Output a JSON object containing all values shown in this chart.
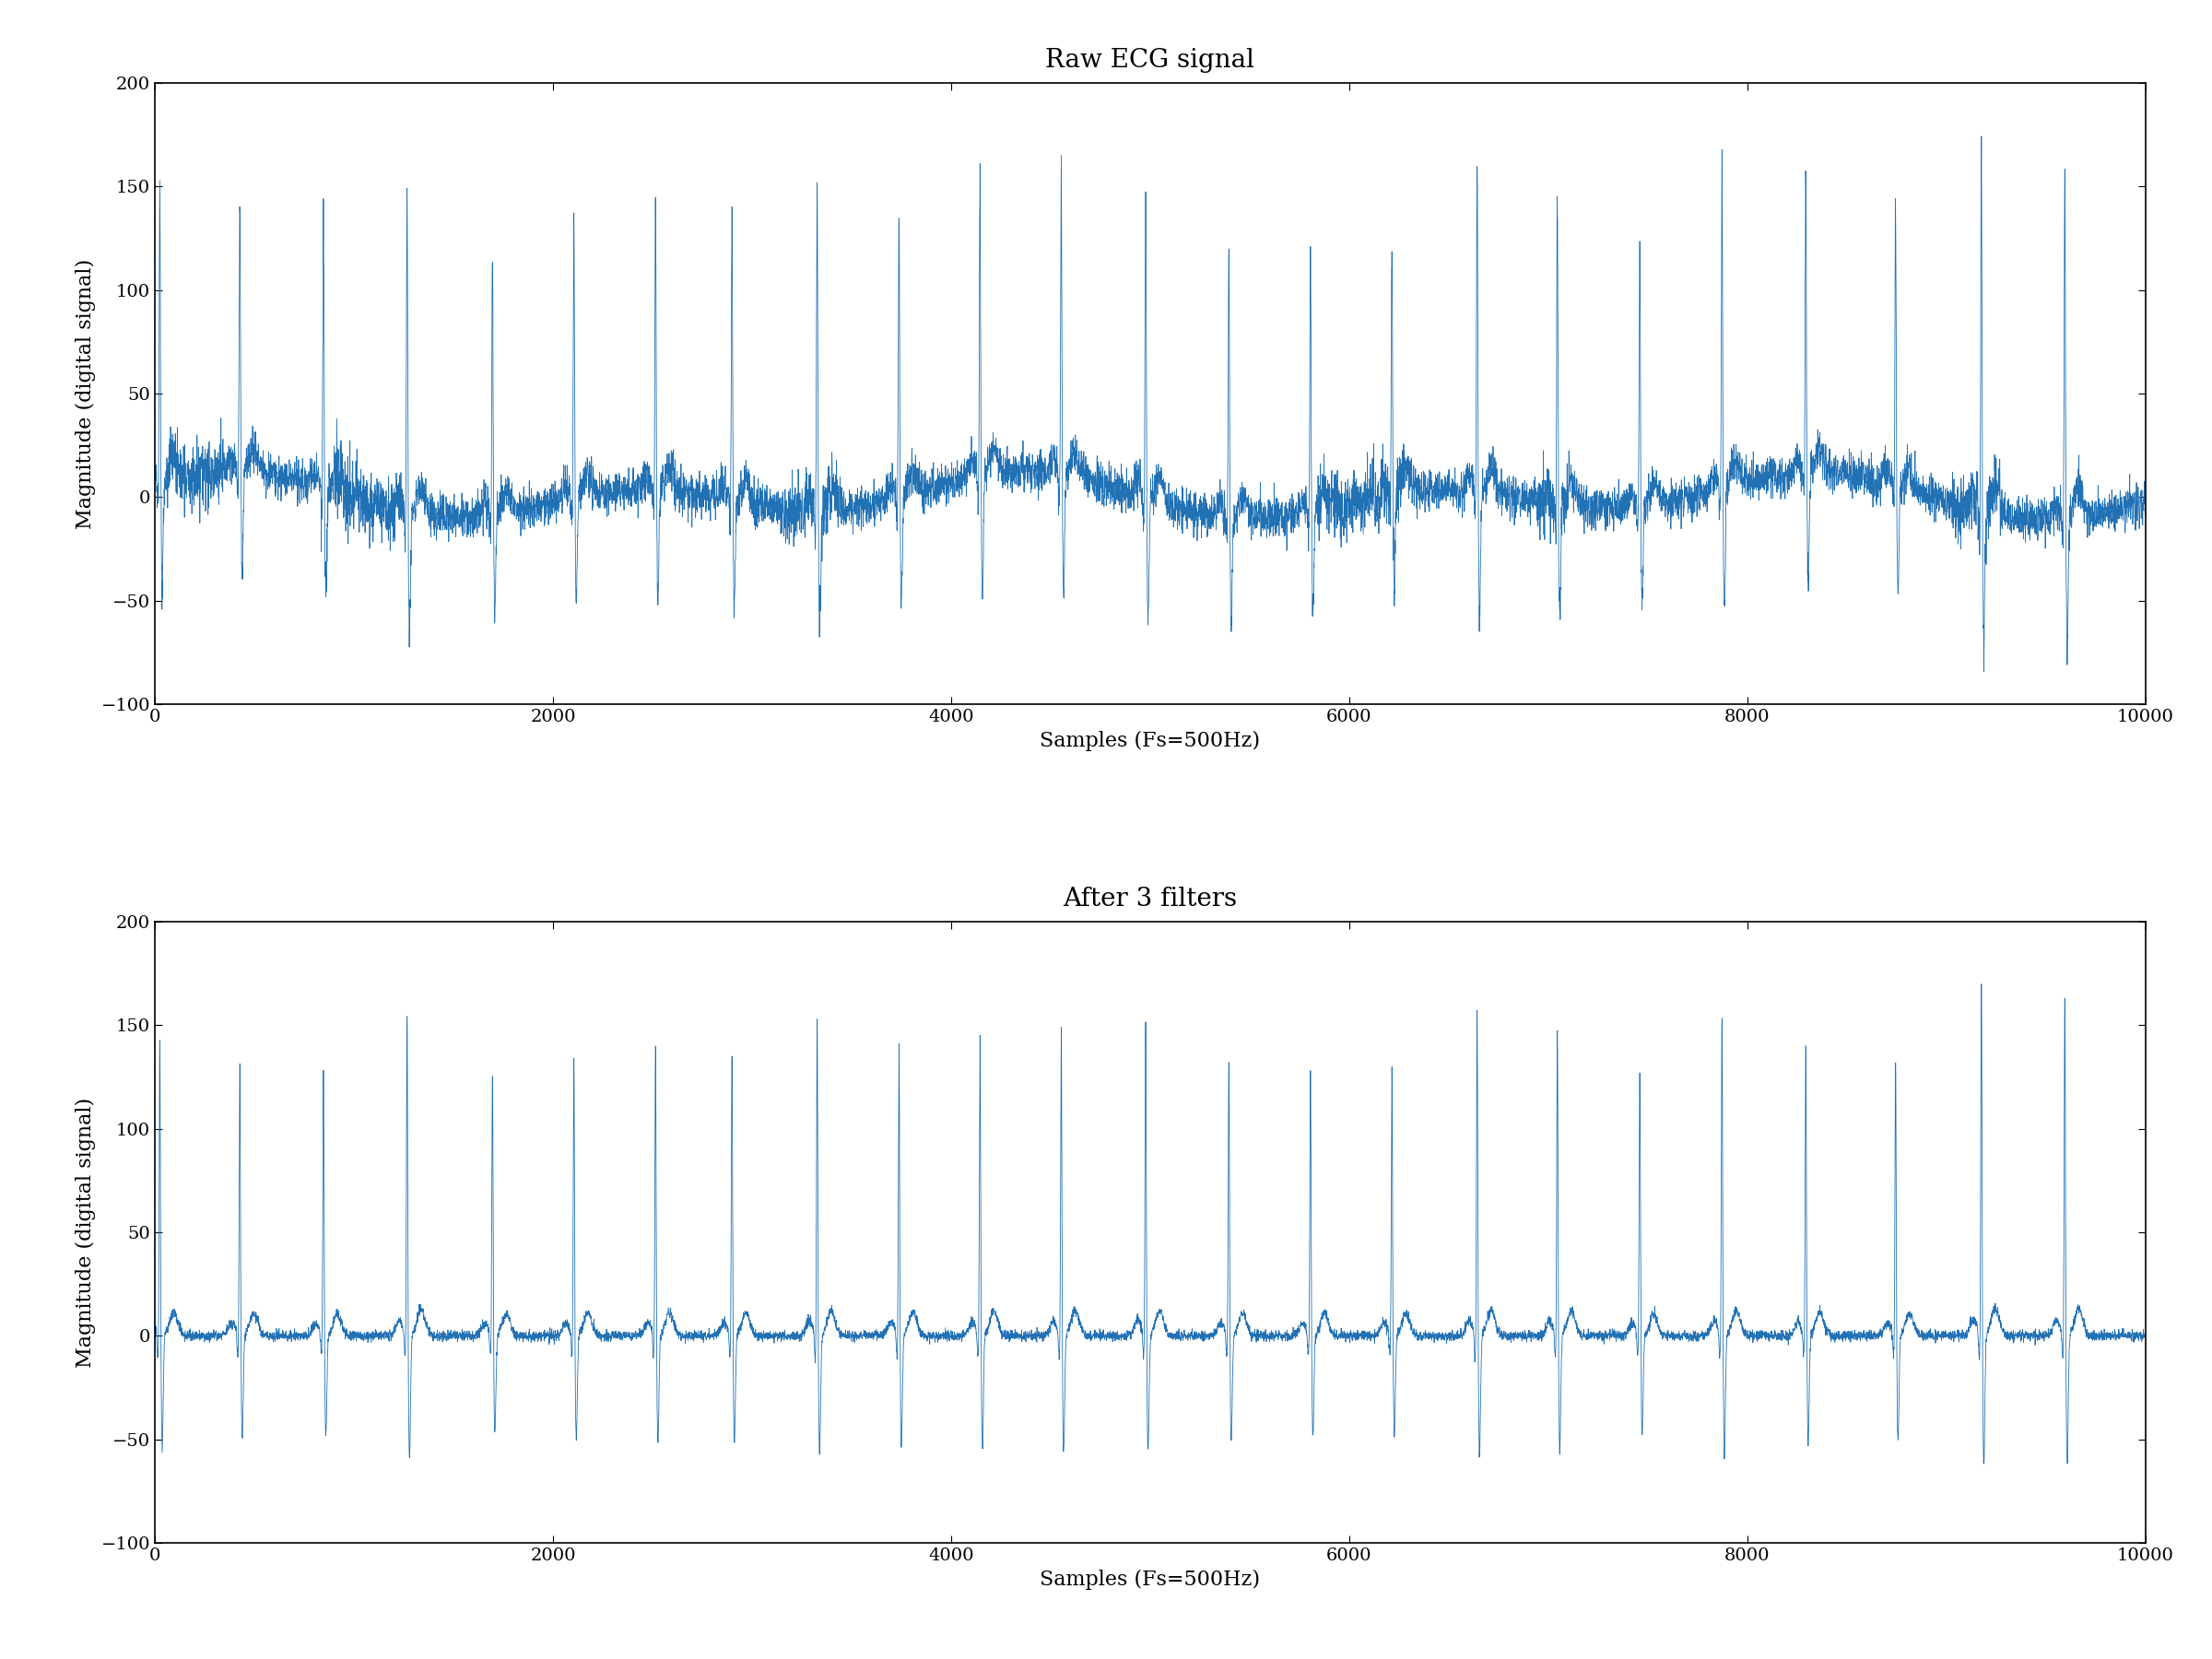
{
  "title1": "Raw ECG signal",
  "title2": "After 3 filters",
  "xlabel": "Samples (Fs=500Hz)",
  "ylabel": "Magnitude (digital signal)",
  "xlim": [
    0,
    10000
  ],
  "ylim": [
    -100,
    200
  ],
  "yticks": [
    -100,
    -50,
    0,
    50,
    100,
    150,
    200
  ],
  "xticks": [
    0,
    2000,
    4000,
    6000,
    8000,
    10000
  ],
  "line_color": "#2171b5",
  "line_width": 0.6,
  "background_color": "#ffffff",
  "fs": 500,
  "n_samples": 10001,
  "heart_rate_bpm": 72,
  "seed": 42
}
